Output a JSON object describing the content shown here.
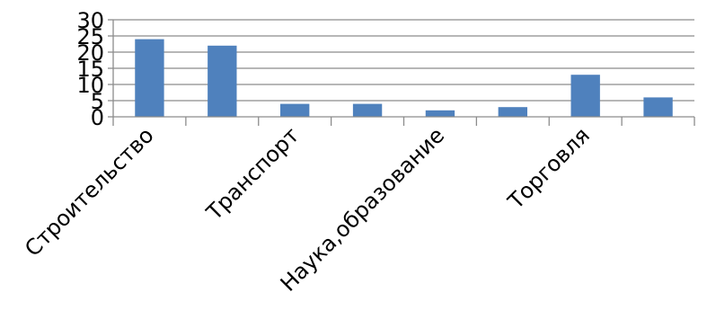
{
  "chart_data": {
    "type": "bar",
    "title": "",
    "xlabel": "",
    "ylabel": "",
    "ylim": [
      0,
      30
    ],
    "yticks": [
      0,
      5,
      10,
      15,
      20,
      25,
      30
    ],
    "grid": true,
    "categories": [
      "Строительство",
      "",
      "Транспорт",
      "",
      "Наука,образование",
      "",
      "Торговля",
      ""
    ],
    "values": [
      24,
      22,
      4,
      4,
      2,
      3,
      13,
      6
    ],
    "colors": {
      "bar": "#4f81bd",
      "grid": "#8c8c8c"
    }
  }
}
